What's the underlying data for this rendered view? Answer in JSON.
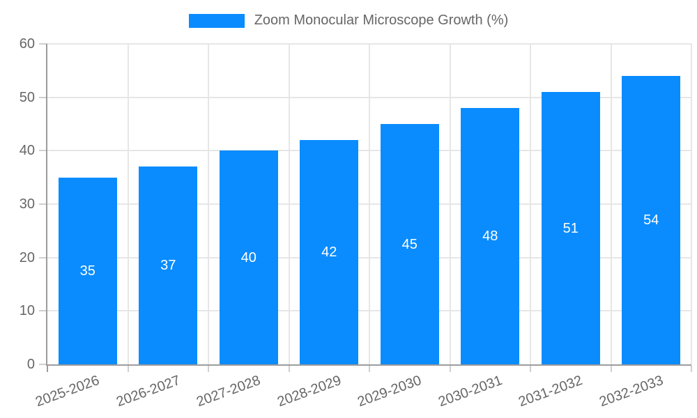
{
  "chart_data": {
    "type": "bar",
    "legend_label": "Zoom Monocular Microscope Growth (%)",
    "categories": [
      "2025-2026",
      "2026-2027",
      "2027-2028",
      "2028-2029",
      "2029-2030",
      "2030-2031",
      "2031-2032",
      "2032-2033"
    ],
    "values": [
      35,
      37,
      40,
      42,
      45,
      48,
      51,
      54
    ],
    "ylim": [
      0,
      60
    ],
    "yticks": [
      0,
      10,
      20,
      30,
      40,
      50,
      60
    ],
    "legend_position": "top",
    "grid": true,
    "bar_value_labels": "centered inside bars",
    "colors": {
      "bar": "#0A8CFF",
      "bar_value_label": "#FFFFFF",
      "axis_text": "#666666",
      "grid_line": "#E6E6E6",
      "axis_line": "#9C9C9C",
      "tick_mark": "#CFCFCF",
      "background": "#FFFFFF"
    }
  }
}
